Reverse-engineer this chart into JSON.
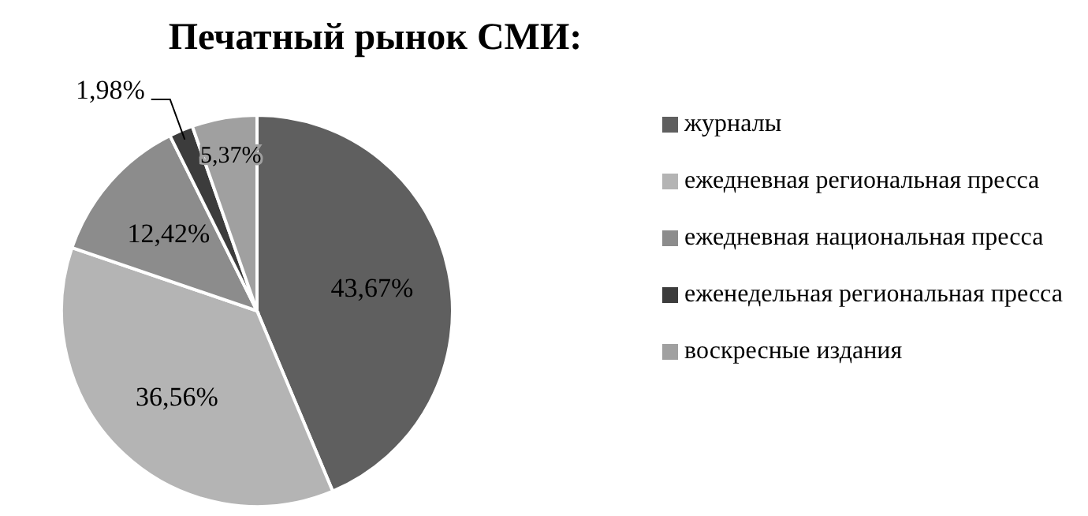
{
  "chart_data": {
    "type": "pie",
    "title": "Печатный рынок СМИ:",
    "categories": [
      "журналы",
      "ежедневная региональная пресса",
      "ежедневная национальная пресса",
      "еженедельная региональная пресса",
      "воскресные издания"
    ],
    "values": [
      43.67,
      36.56,
      12.42,
      1.98,
      5.37
    ],
    "value_labels": [
      "43,67%",
      "36,56%",
      "12,42%",
      "1,98%",
      "5,37%"
    ],
    "colors": [
      "#5f5f5f",
      "#b4b4b4",
      "#8c8c8c",
      "#3c3c3c",
      "#a0a0a0"
    ],
    "legend": "right"
  }
}
